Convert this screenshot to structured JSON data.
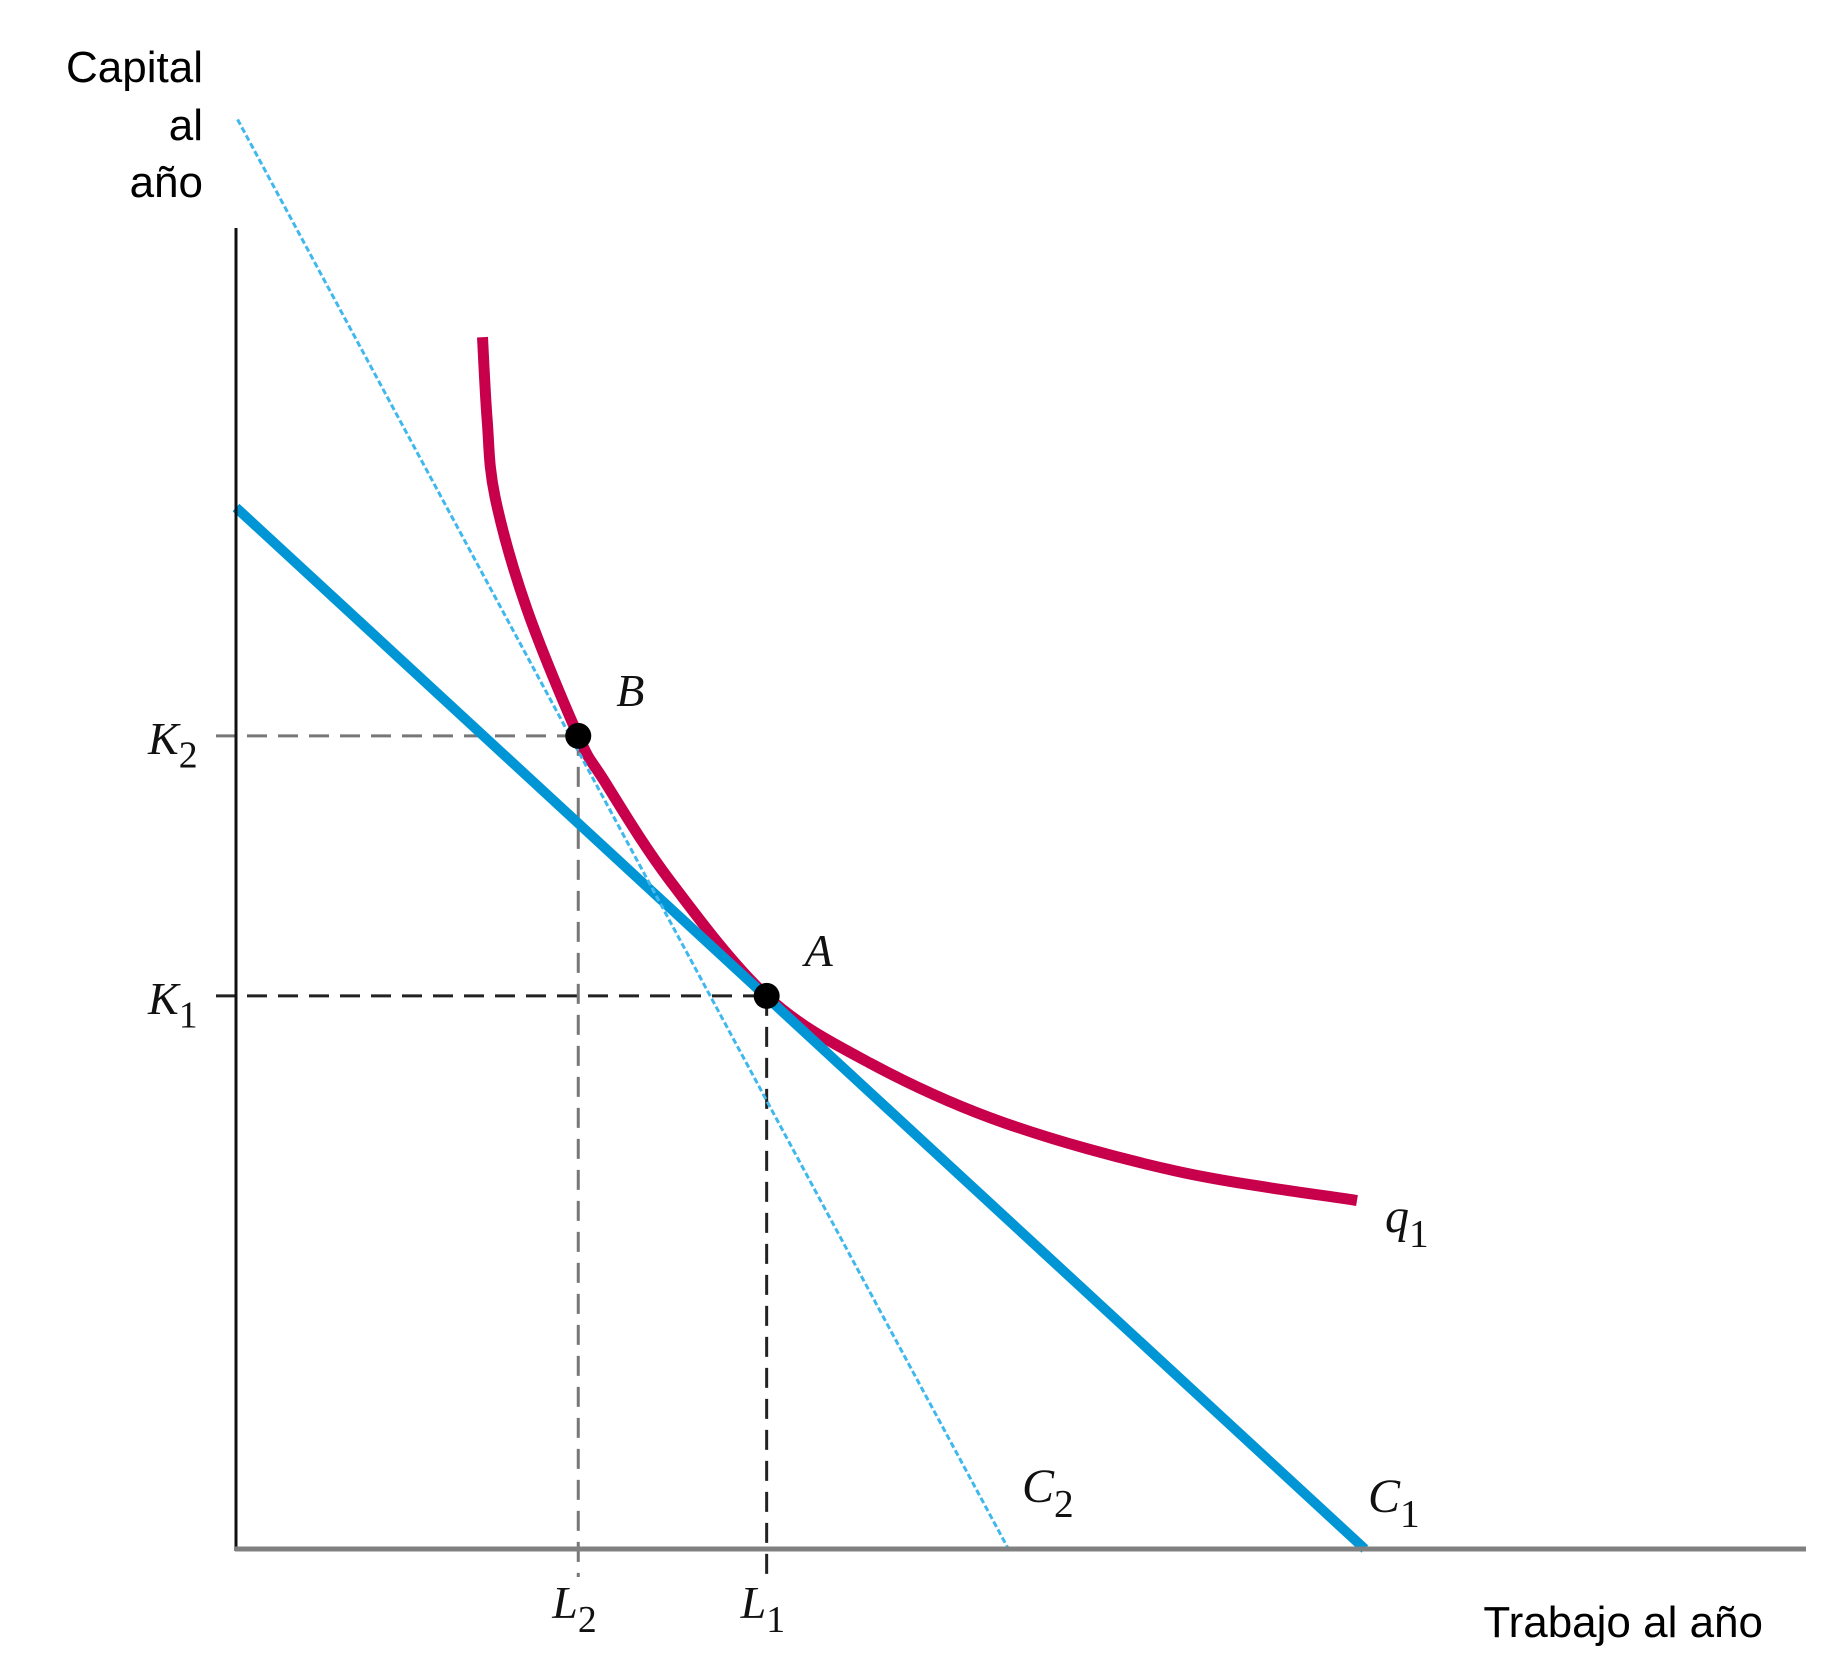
{
  "chart_data": {
    "type": "line",
    "title": "",
    "ylabel_lines": [
      "Capital",
      "al",
      "año"
    ],
    "xlabel": "Trabajo al año",
    "xlim": [
      0,
      100
    ],
    "ylim": [
      0,
      100
    ],
    "grid": false,
    "series": [
      {
        "name": "q1",
        "label_main": "q",
        "label_sub": "1",
        "kind": "isoquant",
        "color": "#C8004B",
        "x": [
          15.7,
          16.0,
          16.5,
          18.5,
          21.8,
          23.4,
          27.6,
          33.8,
          40.4,
          48.9,
          60.0,
          71.4
        ],
        "y": [
          91.8,
          85.5,
          79.7,
          71.3,
          61.6,
          58.3,
          50.7,
          41.9,
          36.8,
          32.3,
          28.6,
          26.4
        ]
      },
      {
        "name": "C1",
        "label_main": "C",
        "label_sub": "1",
        "kind": "isocost",
        "style": "solid",
        "color": "#0096D6",
        "x": [
          0,
          71.9
        ],
        "y": [
          78.9,
          0
        ]
      },
      {
        "name": "C2",
        "label_main": "C",
        "label_sub": "2",
        "kind": "isocost",
        "style": "dashed",
        "color": "#3FB8EE",
        "x": [
          0.1,
          49.2
        ],
        "y": [
          108.3,
          0
        ]
      }
    ],
    "points": [
      {
        "name": "A",
        "label": "A",
        "x": 33.8,
        "y": 41.9,
        "x_tick": {
          "main": "L",
          "sub": "1"
        },
        "y_tick": {
          "main": "K",
          "sub": "1"
        },
        "guide_color": "#222222"
      },
      {
        "name": "B",
        "label": "B",
        "x": 21.8,
        "y": 61.6,
        "x_tick": {
          "main": "L",
          "sub": "2"
        },
        "y_tick": {
          "main": "K",
          "sub": "2"
        },
        "guide_color": "#777777"
      }
    ],
    "axis_color_x": "#808080",
    "axis_color_y": "#111111"
  }
}
